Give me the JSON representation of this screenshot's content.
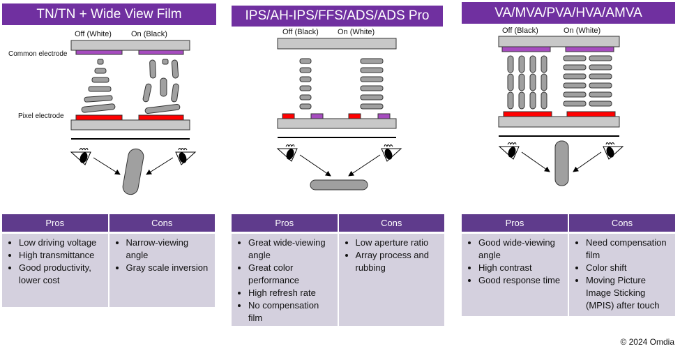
{
  "panels": [
    {
      "title": "TN/TN + Wide View Film",
      "off_label": "Off (White)",
      "on_label": "On (Black)",
      "common_label": "Common electrode",
      "pixel_label": "Pixel electrode",
      "pros_header": "Pros",
      "cons_header": "Cons",
      "pros": [
        "Low driving voltage",
        "High transmittance",
        "Good productivity, lower cost"
      ],
      "cons": [
        "Narrow-viewing angle",
        "Gray scale inversion"
      ]
    },
    {
      "title": "IPS/AH-IPS/FFS/ADS/ADS Pro",
      "off_label": "Off (Black)",
      "on_label": "On (White)",
      "pros_header": "Pros",
      "cons_header": "Cons",
      "pros": [
        "Great wide-viewing angle",
        "Great color performance",
        "High refresh rate",
        "No compensation film"
      ],
      "cons": [
        "Low aperture ratio",
        "Array process and rubbing"
      ]
    },
    {
      "title": "VA/MVA/PVA/HVA/AMVA",
      "off_label": "Off (Black)",
      "on_label": "On (White)",
      "pros_header": "Pros",
      "cons_header": "Cons",
      "pros": [
        "Good wide-viewing angle",
        "High contrast",
        "Good response time"
      ],
      "cons": [
        "Need compensation film",
        "Color shift",
        "Moving Picture Image Sticking (MPIS) after touch"
      ]
    }
  ],
  "copyright": "© 2024 Omdia",
  "colors": {
    "header": "#7030a0",
    "table_header": "#5f3b8c",
    "table_cell": "#d4d0de",
    "common_electrode": "#a64cbf",
    "pixel_electrode": "#ff0000",
    "glass": "#c8c8c8",
    "lc": "#a0a0a0"
  }
}
